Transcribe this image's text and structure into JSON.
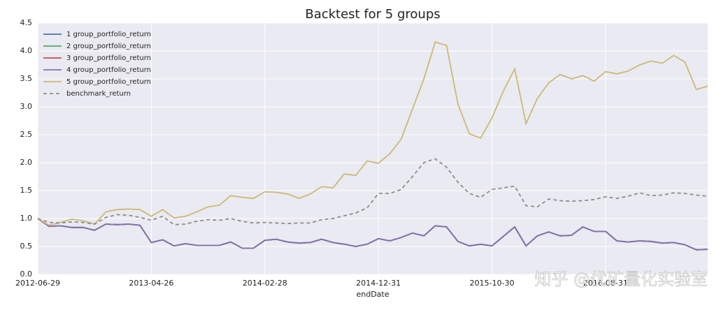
{
  "chart_data": {
    "type": "line",
    "title": "Backtest for 5 groups",
    "x_label": "endDate",
    "categories": [
      "2012-06-29",
      null,
      null,
      null,
      null,
      null,
      null,
      null,
      null,
      null,
      "2013-04-26",
      null,
      null,
      null,
      null,
      null,
      null,
      null,
      null,
      null,
      "2014-02-28",
      null,
      null,
      null,
      null,
      null,
      null,
      null,
      null,
      null,
      "2014-12-31",
      null,
      null,
      null,
      null,
      null,
      null,
      null,
      null,
      null,
      "2015-10-30",
      null,
      null,
      null,
      null,
      null,
      null,
      null,
      null,
      null,
      "2016-08-31",
      null,
      null,
      null,
      null,
      null,
      null,
      null,
      null,
      null
    ],
    "ylim": [
      0,
      4.5
    ],
    "yticks": [
      {
        "value": 0,
        "label": "0.0"
      },
      0.5,
      {
        "value": 1,
        "label": "1.0"
      },
      1.5,
      {
        "value": 2,
        "label": "2.0"
      },
      2.5,
      {
        "value": 3,
        "label": "3.0"
      },
      3.5,
      {
        "value": 4,
        "label": "4.0"
      },
      4.5
    ],
    "grid": true,
    "legend": "upper left",
    "series": [
      {
        "name": "1 group_portfolio_return",
        "color": "#4c72b0",
        "values": [
          1.0,
          0.86,
          0.87,
          0.84,
          0.84,
          0.79,
          0.9,
          0.89,
          0.9,
          0.88,
          0.57,
          0.62,
          0.51,
          0.55,
          0.52,
          0.52,
          0.52,
          0.58,
          0.47,
          0.47,
          0.61,
          0.63,
          0.58,
          0.56,
          0.57,
          0.63,
          0.57,
          0.54,
          0.5,
          0.54,
          0.64,
          0.6,
          0.66,
          0.74,
          0.69,
          0.87,
          0.85,
          0.59,
          0.51,
          0.54,
          0.51,
          0.68,
          0.85,
          0.51,
          0.69,
          0.76,
          0.69,
          0.7,
          0.85,
          0.77,
          0.77,
          0.6,
          0.58,
          0.6,
          0.59,
          0.56,
          0.57,
          0.53,
          0.44,
          0.45
        ]
      },
      {
        "name": "2 group_portfolio_return",
        "color": "#55a868",
        "values": [
          1.0,
          0.86,
          0.87,
          0.84,
          0.84,
          0.79,
          0.9,
          0.89,
          0.9,
          0.88,
          0.57,
          0.62,
          0.51,
          0.55,
          0.52,
          0.52,
          0.52,
          0.58,
          0.47,
          0.47,
          0.61,
          0.63,
          0.58,
          0.56,
          0.57,
          0.63,
          0.57,
          0.54,
          0.5,
          0.54,
          0.64,
          0.6,
          0.66,
          0.74,
          0.69,
          0.87,
          0.85,
          0.59,
          0.51,
          0.54,
          0.51,
          0.68,
          0.85,
          0.51,
          0.69,
          0.76,
          0.69,
          0.7,
          0.85,
          0.77,
          0.77,
          0.6,
          0.58,
          0.6,
          0.59,
          0.56,
          0.57,
          0.53,
          0.44,
          0.45
        ]
      },
      {
        "name": "3 group_portfolio_return",
        "color": "#c44e52",
        "values": [
          1.0,
          0.86,
          0.87,
          0.84,
          0.84,
          0.79,
          0.9,
          0.89,
          0.9,
          0.88,
          0.57,
          0.62,
          0.51,
          0.55,
          0.52,
          0.52,
          0.52,
          0.58,
          0.47,
          0.47,
          0.61,
          0.63,
          0.58,
          0.56,
          0.57,
          0.63,
          0.57,
          0.54,
          0.5,
          0.54,
          0.64,
          0.6,
          0.66,
          0.74,
          0.69,
          0.87,
          0.85,
          0.59,
          0.51,
          0.54,
          0.51,
          0.68,
          0.85,
          0.51,
          0.69,
          0.76,
          0.69,
          0.7,
          0.85,
          0.77,
          0.77,
          0.6,
          0.58,
          0.6,
          0.59,
          0.56,
          0.57,
          0.53,
          0.44,
          0.45
        ]
      },
      {
        "name": "4 group_portfolio_return",
        "color": "#8172b2",
        "values": [
          1.0,
          0.86,
          0.87,
          0.84,
          0.84,
          0.79,
          0.9,
          0.89,
          0.9,
          0.88,
          0.57,
          0.62,
          0.51,
          0.55,
          0.52,
          0.52,
          0.52,
          0.58,
          0.47,
          0.47,
          0.61,
          0.63,
          0.58,
          0.56,
          0.57,
          0.63,
          0.57,
          0.54,
          0.5,
          0.54,
          0.64,
          0.6,
          0.66,
          0.74,
          0.69,
          0.87,
          0.85,
          0.59,
          0.51,
          0.54,
          0.51,
          0.68,
          0.85,
          0.51,
          0.69,
          0.76,
          0.69,
          0.7,
          0.85,
          0.77,
          0.77,
          0.6,
          0.58,
          0.6,
          0.59,
          0.56,
          0.57,
          0.53,
          0.44,
          0.45
        ]
      },
      {
        "name": "5 group_portfolio_return",
        "color": "#ccb974",
        "values": [
          1.0,
          0.88,
          0.93,
          0.99,
          0.96,
          0.9,
          1.12,
          1.16,
          1.17,
          1.16,
          1.04,
          1.16,
          1.01,
          1.04,
          1.12,
          1.21,
          1.24,
          1.41,
          1.38,
          1.36,
          1.48,
          1.47,
          1.44,
          1.36,
          1.44,
          1.57,
          1.55,
          1.8,
          1.77,
          2.03,
          1.99,
          2.16,
          2.42,
          2.96,
          3.5,
          4.16,
          4.1,
          3.05,
          2.52,
          2.44,
          2.8,
          3.28,
          3.68,
          2.7,
          3.15,
          3.43,
          3.58,
          3.5,
          3.56,
          3.46,
          3.63,
          3.59,
          3.64,
          3.75,
          3.82,
          3.78,
          3.92,
          3.8,
          3.31,
          3.37
        ]
      },
      {
        "name": "benchmark_return",
        "color": "#8c8c8c",
        "dashed": true,
        "values": [
          1.0,
          0.93,
          0.92,
          0.94,
          0.93,
          0.9,
          1.02,
          1.07,
          1.06,
          1.02,
          0.97,
          1.04,
          0.89,
          0.9,
          0.95,
          0.98,
          0.97,
          1.0,
          0.95,
          0.92,
          0.93,
          0.92,
          0.91,
          0.92,
          0.92,
          0.98,
          1.0,
          1.05,
          1.1,
          1.19,
          1.45,
          1.45,
          1.52,
          1.75,
          2.0,
          2.07,
          1.92,
          1.65,
          1.45,
          1.38,
          1.52,
          1.55,
          1.58,
          1.23,
          1.21,
          1.35,
          1.32,
          1.31,
          1.32,
          1.34,
          1.39,
          1.36,
          1.4,
          1.46,
          1.41,
          1.42,
          1.46,
          1.45,
          1.42,
          1.4
        ]
      }
    ],
    "watermark": "知乎 @优矿量化实验室"
  }
}
